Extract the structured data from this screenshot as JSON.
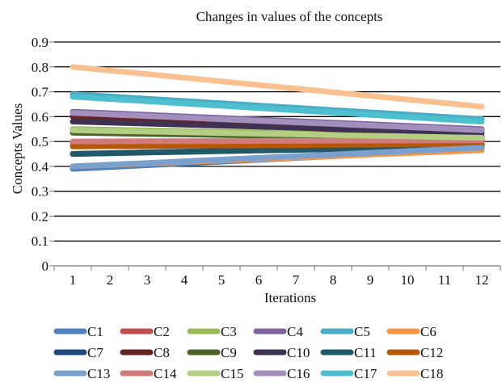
{
  "chart_data": {
    "type": "line",
    "title": "Changes in values of the concepts",
    "xlabel": "Iterations",
    "ylabel": "Concepts Values",
    "x": [
      1,
      2,
      3,
      4,
      5,
      6,
      7,
      8,
      9,
      10,
      11,
      12
    ],
    "x_tick_labels": [
      "1",
      "2",
      "3",
      "4",
      "5",
      "6",
      "7",
      "8",
      "9",
      "10",
      "11",
      "12"
    ],
    "ylim": [
      0,
      0.9
    ],
    "y_ticks": [
      0,
      0.1,
      0.2,
      0.3,
      0.4,
      0.5,
      0.6,
      0.7,
      0.8,
      0.9
    ],
    "y_tick_labels": [
      "0",
      "0.1",
      "0.2",
      "0.3",
      "0.4",
      "0.5",
      "0.6",
      "0.7",
      "0.8",
      "0.9"
    ],
    "grid": "horizontal",
    "legend_position": "bottom",
    "series": [
      {
        "name": "C1",
        "color": "#4f81bd",
        "start": 0.39,
        "end": 0.47
      },
      {
        "name": "C2",
        "color": "#c0504d",
        "start": 0.49,
        "end": 0.5
      },
      {
        "name": "C3",
        "color": "#9bbb59",
        "start": 0.55,
        "end": 0.52
      },
      {
        "name": "C4",
        "color": "#8064a2",
        "start": 0.62,
        "end": 0.55
      },
      {
        "name": "C5",
        "color": "#4bacc6",
        "start": 0.69,
        "end": 0.59
      },
      {
        "name": "C6",
        "color": "#f79646",
        "start": 0.4,
        "end": 0.465
      },
      {
        "name": "C7",
        "color": "#1f497d",
        "start": 0.45,
        "end": 0.485
      },
      {
        "name": "C8",
        "color": "#632423",
        "start": 0.6,
        "end": 0.52
      },
      {
        "name": "C9",
        "color": "#4f6228",
        "start": 0.535,
        "end": 0.51
      },
      {
        "name": "C10",
        "color": "#3f3151",
        "start": 0.58,
        "end": 0.535
      },
      {
        "name": "C11",
        "color": "#215967",
        "start": 0.45,
        "end": 0.48
      },
      {
        "name": "C12",
        "color": "#b65708",
        "start": 0.48,
        "end": 0.49
      },
      {
        "name": "C13",
        "color": "#7ba0cd",
        "start": 0.4,
        "end": 0.475
      },
      {
        "name": "C14",
        "color": "#d07b79",
        "start": 0.5,
        "end": 0.505
      },
      {
        "name": "C15",
        "color": "#b4cf83",
        "start": 0.545,
        "end": 0.515
      },
      {
        "name": "C16",
        "color": "#a28fbd",
        "start": 0.615,
        "end": 0.545
      },
      {
        "name": "C17",
        "color": "#4dbfcf",
        "start": 0.68,
        "end": 0.58
      },
      {
        "name": "C18",
        "color": "#fac090",
        "start": 0.8,
        "end": 0.64
      }
    ]
  }
}
